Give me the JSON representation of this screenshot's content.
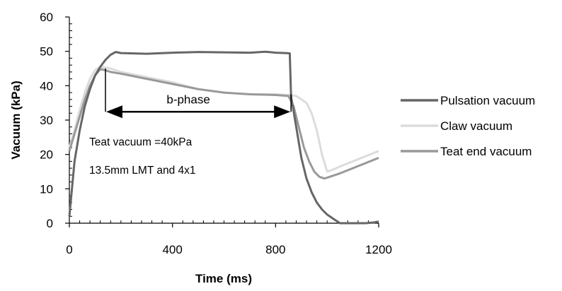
{
  "chart_data": {
    "type": "line",
    "title": "",
    "xlabel": "Time (ms)",
    "ylabel": "Vacuum (kPa)",
    "xlim": [
      0,
      1200
    ],
    "ylim": [
      0,
      60
    ],
    "xticks": [
      0,
      400,
      800,
      1200
    ],
    "yticks": [
      0,
      10,
      20,
      30,
      40,
      50,
      60
    ],
    "grid": false,
    "legend_position": "right",
    "series": [
      {
        "name": "Pulsation vacuum",
        "color": "#666666",
        "x": [
          0,
          20,
          40,
          60,
          80,
          100,
          120,
          140,
          160,
          180,
          200,
          300,
          400,
          500,
          600,
          700,
          760,
          800,
          840,
          855,
          860,
          880,
          900,
          920,
          940,
          960,
          980,
          1000,
          1020,
          1040,
          1050,
          1100,
          1150,
          1180,
          1200
        ],
        "values": [
          2,
          18,
          27,
          34,
          39,
          43,
          45.5,
          47.5,
          49,
          49.8,
          49.5,
          49.3,
          49.6,
          49.8,
          49.7,
          49.6,
          49.9,
          49.6,
          49.5,
          49.4,
          37,
          28,
          19,
          13,
          9,
          6,
          4,
          2.5,
          1.5,
          0.5,
          0,
          0,
          0,
          0.2,
          0.5
        ]
      },
      {
        "name": "Claw vacuum",
        "color": "#dcdcdc",
        "x": [
          0,
          20,
          40,
          60,
          80,
          100,
          120,
          140,
          160,
          200,
          300,
          400,
          500,
          600,
          700,
          800,
          850,
          880,
          900,
          920,
          940,
          960,
          980,
          1000,
          1020,
          1050,
          1100,
          1150,
          1200
        ],
        "values": [
          22,
          27,
          33,
          38,
          42,
          44.5,
          45.5,
          45.3,
          45,
          44,
          42.5,
          41,
          39,
          38,
          37.5,
          37.5,
          37.3,
          37,
          36,
          35,
          32,
          27,
          20,
          15,
          15.5,
          16.5,
          18,
          19.5,
          21
        ]
      },
      {
        "name": "Teat end vacuum",
        "color": "#999999",
        "x": [
          0,
          20,
          40,
          60,
          80,
          100,
          120,
          140,
          160,
          200,
          300,
          400,
          500,
          600,
          700,
          800,
          850,
          870,
          890,
          910,
          930,
          950,
          970,
          990,
          1010,
          1050,
          1100,
          1150,
          1200
        ],
        "values": [
          21,
          26,
          31,
          36,
          40,
          43,
          44.8,
          44.5,
          44,
          43.5,
          42,
          40.5,
          39,
          38,
          37.5,
          37.3,
          37,
          34,
          28,
          22,
          18,
          15,
          13.5,
          13,
          13.5,
          14.5,
          16,
          17.5,
          19
        ]
      }
    ],
    "annotations": {
      "phase_label": "b-phase",
      "phase_x_range": [
        140,
        860
      ],
      "phase_arrow_y": 32,
      "teat_vacuum": "Teat vacuum =40kPa",
      "setup": "13.5mm LMT and 4x1"
    }
  }
}
